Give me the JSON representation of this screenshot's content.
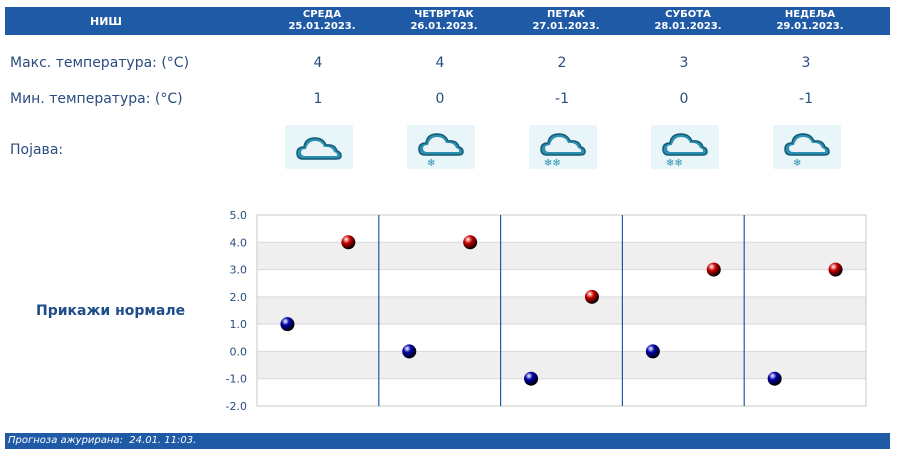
{
  "header": {
    "city": "НИШ",
    "days": [
      {
        "name": "СРЕДА",
        "date": "25.01.2023."
      },
      {
        "name": "ЧЕТВРТАК",
        "date": "26.01.2023."
      },
      {
        "name": "ПЕТАК",
        "date": "27.01.2023."
      },
      {
        "name": "СУБОТА",
        "date": "28.01.2023."
      },
      {
        "name": "НЕДЕЉА",
        "date": "29.01.2023."
      }
    ]
  },
  "rows": {
    "max_label": "Макс. температура: (°C)",
    "min_label": "Мин. температура: (°C)",
    "phenomenon_label": "Појава:",
    "max_values": [
      "4",
      "4",
      "2",
      "3",
      "3"
    ],
    "min_values": [
      "1",
      "0",
      "-1",
      "0",
      "-1"
    ],
    "icons": [
      "cloud-icon",
      "cloud-snow-icon",
      "cloud-heavy-snow-icon",
      "cloud-heavy-snow-icon",
      "cloud-snow-icon"
    ]
  },
  "normals_button": "Прикажи нормале",
  "chart_data": {
    "type": "scatter",
    "ylim": [
      -2.0,
      5.0
    ],
    "y_ticks": [
      "5.0",
      "4.0",
      "3.0",
      "2.0",
      "1.0",
      "0.0",
      "-1.0",
      "-2.0"
    ],
    "grid": "horizontal-bands",
    "series": [
      {
        "color": "#cc0000",
        "values": [
          4,
          4,
          2,
          3,
          3
        ]
      },
      {
        "color": "#0000aa",
        "values": [
          1,
          0,
          -1,
          0,
          -1
        ]
      }
    ]
  },
  "footer": {
    "label": "Прогноза ажурирана:",
    "value": "24.01. 11:03."
  },
  "colors": {
    "header_bg": "#1f5aa6",
    "text": "#2a4d7f",
    "icon_bg": "#e9f6f9"
  }
}
